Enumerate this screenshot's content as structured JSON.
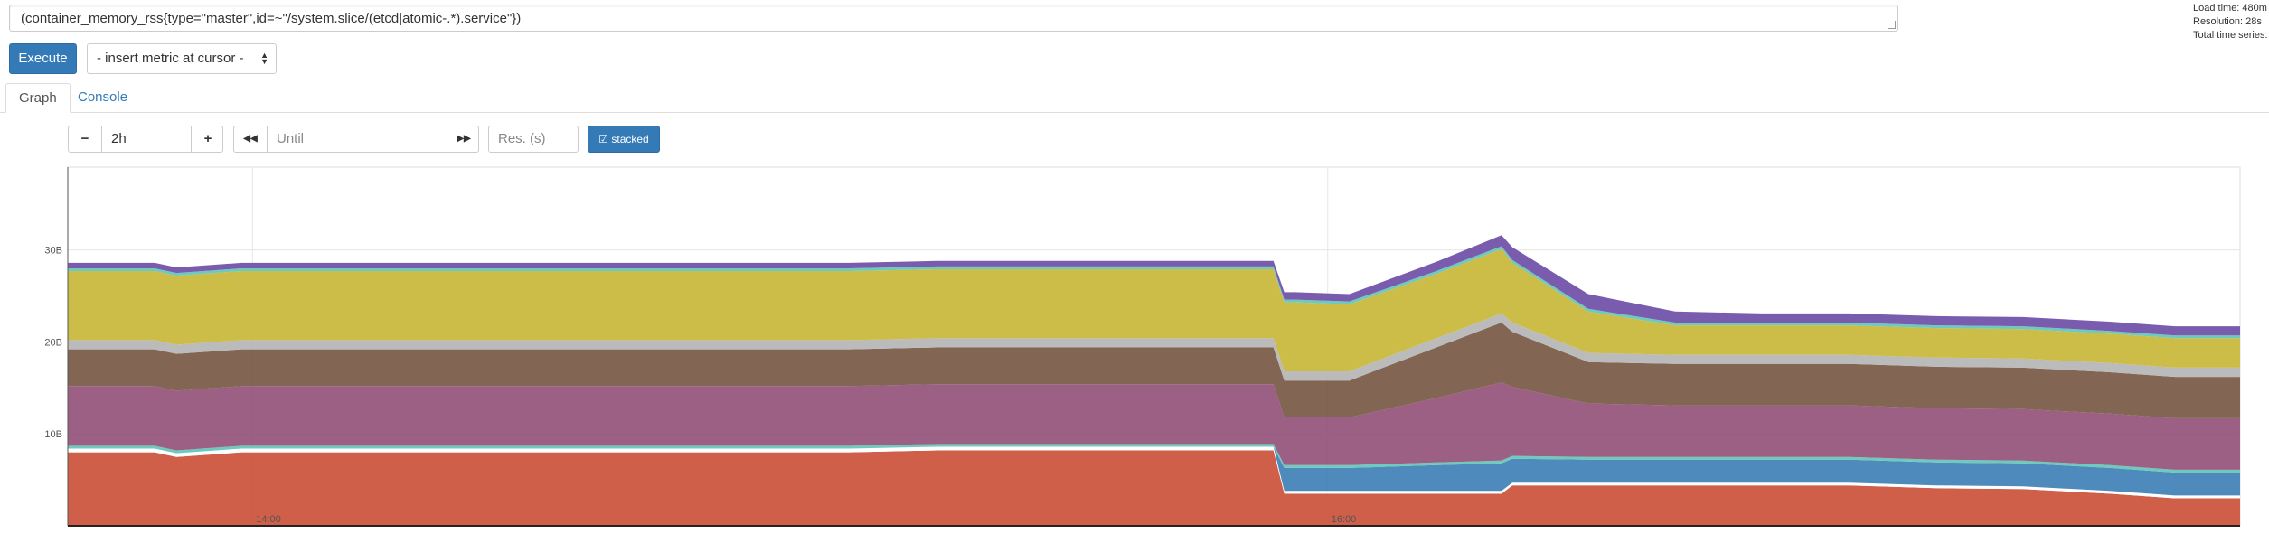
{
  "query": {
    "expression": "(container_memory_rss{type=\"master\",id=~\"/system.slice/(etcd|atomic-.*).service\"})"
  },
  "stats": {
    "load_time": "Load time: 480m",
    "resolution": "Resolution: 28s",
    "total_series": "Total time series:"
  },
  "controls": {
    "execute_label": "Execute",
    "metric_select_value": "- insert metric at cursor -"
  },
  "tabs": [
    {
      "label": "Graph",
      "active": true
    },
    {
      "label": "Console",
      "active": false
    }
  ],
  "range": {
    "minus_label": "−",
    "duration": "2h",
    "plus_label": "+",
    "back_label": "◀◀",
    "until_placeholder": "Until",
    "forward_label": "▶▶",
    "resolution_placeholder": "Res. (s)",
    "stacked_label": "stacked"
  },
  "chart_data": {
    "type": "area",
    "stacked": true,
    "title": "",
    "xlabel": "",
    "ylabel": "",
    "ylim": [
      0,
      39
    ],
    "yticks": [
      {
        "value": 10,
        "label": "10B"
      },
      {
        "value": 20,
        "label": "20B"
      },
      {
        "value": 30,
        "label": "30B"
      }
    ],
    "xlim": [
      0,
      100
    ],
    "xticks": [
      {
        "value": 8.5,
        "label": "14:00"
      },
      {
        "value": 58,
        "label": "16:00"
      }
    ],
    "grid": true,
    "legend": "none",
    "x": [
      0,
      4,
      5,
      8,
      12,
      16,
      20,
      24,
      28,
      32,
      36,
      40,
      44,
      48,
      52,
      55.5,
      56,
      56.5,
      59,
      63,
      66,
      66.5,
      70,
      74,
      78,
      82,
      86,
      90,
      94,
      97,
      100
    ],
    "series": [
      {
        "color": "#cb513a",
        "values": [
          8,
          8,
          7.5,
          8,
          8,
          8,
          8,
          8,
          8,
          8,
          8,
          8.2,
          8.2,
          8.2,
          8.2,
          8.2,
          3.5,
          3.5,
          3.5,
          3.5,
          3.5,
          4.4,
          4.4,
          4.4,
          4.4,
          4.4,
          4.1,
          4,
          3.5,
          3,
          3
        ]
      },
      {
        "color": "#ffffff",
        "values": [
          0.4,
          0.4,
          0.4,
          0.4,
          0.4,
          0.4,
          0.4,
          0.4,
          0.4,
          0.4,
          0.4,
          0.4,
          0.4,
          0.4,
          0.4,
          0.4,
          0.3,
          0.3,
          0.3,
          0.3,
          0.3,
          0.3,
          0.3,
          0.3,
          0.3,
          0.3,
          0.3,
          0.3,
          0.3,
          0.3,
          0.3
        ]
      },
      {
        "color": "#3f80b5",
        "values": [
          0,
          0,
          0,
          0,
          0,
          0,
          0,
          0,
          0,
          0,
          0,
          0,
          0,
          0,
          0,
          0,
          2.5,
          2.5,
          2.5,
          2.8,
          3,
          2.6,
          2.5,
          2.5,
          2.5,
          2.5,
          2.5,
          2.5,
          2.5,
          2.5,
          2.5
        ]
      },
      {
        "color": "#63c5b8",
        "values": [
          0.3,
          0.3,
          0.3,
          0.3,
          0.3,
          0.3,
          0.3,
          0.3,
          0.3,
          0.3,
          0.3,
          0.3,
          0.3,
          0.3,
          0.3,
          0.3,
          0.3,
          0.3,
          0.3,
          0.3,
          0.3,
          0.3,
          0.3,
          0.3,
          0.3,
          0.3,
          0.3,
          0.3,
          0.3,
          0.3,
          0.3
        ]
      },
      {
        "color": "#93527a",
        "values": [
          6.5,
          6.5,
          6.5,
          6.5,
          6.5,
          6.5,
          6.5,
          6.5,
          6.5,
          6.5,
          6.5,
          6.5,
          6.5,
          6.5,
          6.5,
          6.5,
          5.2,
          5.2,
          5.2,
          7,
          8.5,
          7.5,
          5.8,
          5.6,
          5.6,
          5.6,
          5.6,
          5.6,
          5.6,
          5.6,
          5.6
        ]
      },
      {
        "color": "#775843",
        "values": [
          4,
          4,
          4,
          4,
          4,
          4,
          4,
          4,
          4,
          4,
          4,
          4,
          4,
          4,
          4,
          4,
          4,
          4,
          4,
          5.5,
          6.5,
          6,
          4.5,
          4.5,
          4.5,
          4.5,
          4.5,
          4.5,
          4.5,
          4.5,
          4.5
        ]
      },
      {
        "color": "#b5b5b5",
        "values": [
          1,
          1,
          1,
          1,
          1,
          1,
          1,
          1,
          1,
          1,
          1,
          1,
          1,
          1,
          1,
          1,
          1,
          1,
          1,
          1,
          1,
          1,
          1,
          1,
          1,
          1,
          1,
          1,
          1,
          1,
          1
        ]
      },
      {
        "color": "#c8b73a",
        "values": [
          7.5,
          7.5,
          7.5,
          7.5,
          7.5,
          7.5,
          7.5,
          7.5,
          7.5,
          7.5,
          7.5,
          7.5,
          7.5,
          7.5,
          7.5,
          7.5,
          7.5,
          7.5,
          7.3,
          7,
          7,
          6.5,
          4.5,
          3.2,
          3.2,
          3.2,
          3.2,
          3.2,
          3.2,
          3.2,
          3.2
        ]
      },
      {
        "color": "#63c5b8",
        "values": [
          0.3,
          0.3,
          0.3,
          0.3,
          0.3,
          0.3,
          0.3,
          0.3,
          0.3,
          0.3,
          0.3,
          0.3,
          0.3,
          0.3,
          0.3,
          0.3,
          0.3,
          0.3,
          0.3,
          0.3,
          0.3,
          0.3,
          0.3,
          0.3,
          0.3,
          0.3,
          0.3,
          0.3,
          0.3,
          0.3,
          0.3
        ]
      },
      {
        "color": "#6f4ea8",
        "values": [
          0.6,
          0.6,
          0.6,
          0.6,
          0.6,
          0.6,
          0.6,
          0.6,
          0.6,
          0.6,
          0.6,
          0.6,
          0.6,
          0.6,
          0.6,
          0.6,
          0.8,
          0.8,
          0.8,
          1,
          1.2,
          1.4,
          1.6,
          1.2,
          1,
          1,
          1,
          1,
          1,
          1,
          1
        ]
      }
    ]
  }
}
